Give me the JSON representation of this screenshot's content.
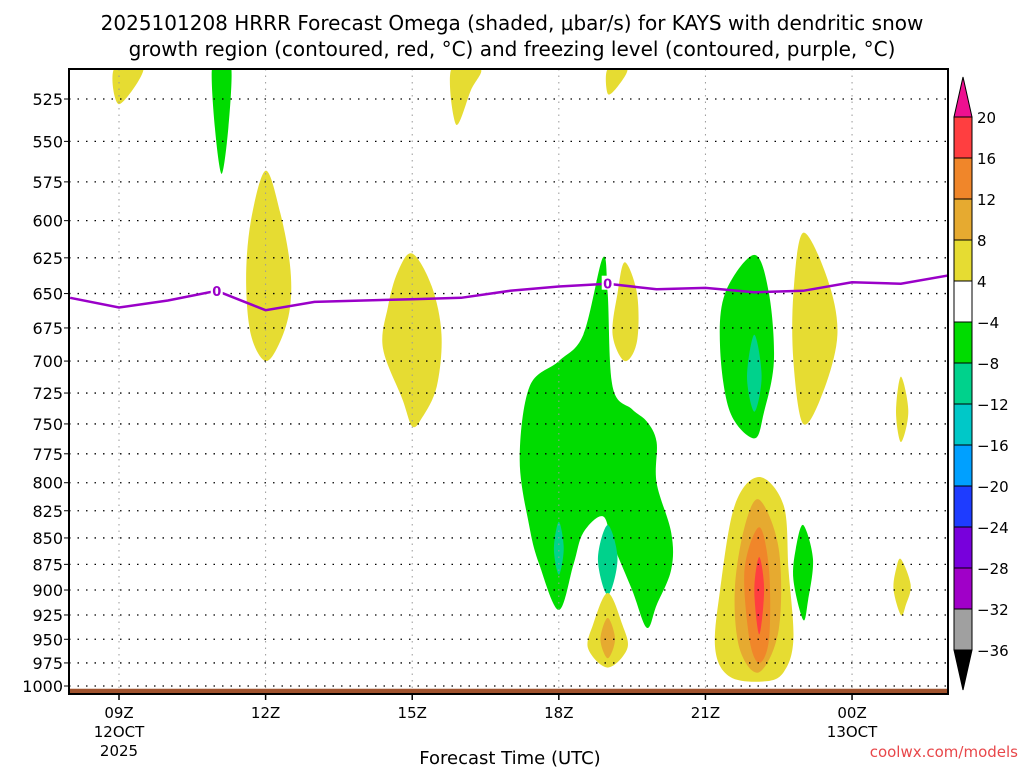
{
  "chart_data": {
    "type": "contour",
    "title_lines": [
      "2025101208 HRRR Forecast Omega (shaded, μbar/s) for KAYS with dendritic snow",
      "growth region (contoured, red, °C) and freezing level (contoured, purple, °C)"
    ],
    "xlabel": "Forecast Time (UTC)",
    "ylabel": "",
    "credit": "coolwx.com/models",
    "x_unit": "hours since 2025-10-12 09Z",
    "xlim": [
      -1.0,
      17.0
    ],
    "ylim_hPa": [
      510,
      1005
    ],
    "y_scale": "log-pressure, inverted",
    "grid": true,
    "y_ticks": [
      525,
      550,
      575,
      600,
      625,
      650,
      675,
      700,
      725,
      750,
      775,
      800,
      825,
      850,
      875,
      900,
      925,
      950,
      975,
      1000
    ],
    "x_ticks": [
      {
        "hour": 0,
        "lines": [
          "09Z",
          "12OCT",
          "2025"
        ]
      },
      {
        "hour": 3,
        "lines": [
          "12Z"
        ]
      },
      {
        "hour": 6,
        "lines": [
          "15Z"
        ]
      },
      {
        "hour": 9,
        "lines": [
          "18Z"
        ]
      },
      {
        "hour": 12,
        "lines": [
          "21Z"
        ]
      },
      {
        "hour": 15,
        "lines": [
          "00Z",
          "13OCT"
        ]
      }
    ],
    "colorbar": {
      "levels": [
        20,
        16,
        12,
        8,
        4,
        -4,
        -8,
        -12,
        -16,
        -20,
        -24,
        -28,
        -32,
        -36
      ],
      "colors": [
        "#ff3e40",
        "#f0862a",
        "#e6aa30",
        "#e6dc32",
        "#ffffff",
        "#00dc00",
        "#00d28c",
        "#00c8c8",
        "#00a0ff",
        "#1e3cff",
        "#7800dc",
        "#a000c8",
        "#a0a0a0"
      ],
      "over_color": "#ee1090",
      "under_color": "#000000"
    },
    "omega_regions": [
      {
        "name": "yellow-09z-top",
        "level": 4,
        "color": "#e6dc32",
        "points": [
          [
            -0.1,
            508
          ],
          [
            0.5,
            508
          ],
          [
            0.0,
            528
          ]
        ]
      },
      {
        "name": "green-11z-top",
        "level": -4,
        "color": "#00dc00",
        "points": [
          [
            1.9,
            508
          ],
          [
            2.3,
            508
          ],
          [
            2.1,
            570
          ]
        ]
      },
      {
        "name": "yellow-12z",
        "level": 4,
        "color": "#e6dc32",
        "points": [
          [
            3.0,
            568
          ],
          [
            3.3,
            595
          ],
          [
            3.5,
            630
          ],
          [
            3.5,
            660
          ],
          [
            3.3,
            685
          ],
          [
            3.0,
            700
          ],
          [
            2.7,
            680
          ],
          [
            2.6,
            640
          ],
          [
            2.7,
            600
          ]
        ]
      },
      {
        "name": "yellow-15z",
        "level": 4,
        "color": "#e6dc32",
        "points": [
          [
            6.0,
            622
          ],
          [
            6.4,
            645
          ],
          [
            6.6,
            680
          ],
          [
            6.5,
            720
          ],
          [
            6.2,
            745
          ],
          [
            6.0,
            752
          ],
          [
            5.8,
            730
          ],
          [
            5.4,
            690
          ],
          [
            5.5,
            660
          ],
          [
            5.7,
            635
          ]
        ]
      },
      {
        "name": "yellow-1630z-top",
        "level": 4,
        "color": "#e6dc32",
        "points": [
          [
            6.8,
            508
          ],
          [
            7.4,
            508
          ],
          [
            7.2,
            520
          ],
          [
            6.9,
            540
          ]
        ]
      },
      {
        "name": "yellow-1930z-top",
        "level": 4,
        "color": "#e6dc32",
        "points": [
          [
            10.0,
            508
          ],
          [
            10.4,
            508
          ],
          [
            10.2,
            518
          ],
          [
            10.0,
            522
          ]
        ]
      },
      {
        "name": "green-18z-big",
        "level": -4,
        "color": "#00dc00",
        "points": [
          [
            9.9,
            625
          ],
          [
            10.0,
            650
          ],
          [
            10.1,
            720
          ],
          [
            10.5,
            738
          ],
          [
            10.8,
            748
          ],
          [
            11.0,
            765
          ],
          [
            11.0,
            800
          ],
          [
            11.3,
            845
          ],
          [
            11.3,
            880
          ],
          [
            11.0,
            915
          ],
          [
            10.8,
            938
          ],
          [
            10.5,
            900
          ],
          [
            10.1,
            855
          ],
          [
            9.9,
            830
          ],
          [
            9.5,
            845
          ],
          [
            9.3,
            875
          ],
          [
            9.0,
            920
          ],
          [
            8.6,
            875
          ],
          [
            8.4,
            840
          ],
          [
            8.2,
            780
          ],
          [
            8.4,
            720
          ],
          [
            9.0,
            700
          ],
          [
            9.5,
            680
          ]
        ]
      },
      {
        "name": "teal-18z",
        "level": -8,
        "color": "#00d28c",
        "points": [
          [
            9.0,
            835
          ],
          [
            9.1,
            860
          ],
          [
            9.0,
            885
          ],
          [
            8.9,
            860
          ]
        ]
      },
      {
        "name": "teal-20z",
        "level": -8,
        "color": "#00d28c",
        "points": [
          [
            10.0,
            838
          ],
          [
            10.2,
            870
          ],
          [
            10.0,
            905
          ],
          [
            9.8,
            870
          ]
        ]
      },
      {
        "name": "yellow-20z-sliver",
        "level": 4,
        "color": "#e6dc32",
        "points": [
          [
            10.35,
            628
          ],
          [
            10.6,
            650
          ],
          [
            10.6,
            685
          ],
          [
            10.35,
            700
          ],
          [
            10.1,
            680
          ],
          [
            10.2,
            650
          ]
        ]
      },
      {
        "name": "yellow-19z-low",
        "level": 4,
        "color": "#e6dc32",
        "points": [
          [
            10.0,
            903
          ],
          [
            10.3,
            935
          ],
          [
            10.4,
            960
          ],
          [
            10.0,
            980
          ],
          [
            9.6,
            960
          ],
          [
            9.7,
            935
          ]
        ]
      },
      {
        "name": "gold-19z-low",
        "level": 8,
        "color": "#e6aa30",
        "points": [
          [
            10.0,
            928
          ],
          [
            10.15,
            950
          ],
          [
            10.0,
            970
          ],
          [
            9.85,
            950
          ]
        ]
      },
      {
        "name": "green-2130z",
        "level": -4,
        "color": "#00dc00",
        "points": [
          [
            13.0,
            623
          ],
          [
            13.3,
            650
          ],
          [
            13.4,
            700
          ],
          [
            13.2,
            740
          ],
          [
            13.0,
            762
          ],
          [
            12.5,
            740
          ],
          [
            12.3,
            690
          ],
          [
            12.4,
            650
          ]
        ]
      },
      {
        "name": "teal-2130z",
        "level": -8,
        "color": "#00d28c",
        "points": [
          [
            13.0,
            680
          ],
          [
            13.15,
            712
          ],
          [
            13.0,
            740
          ],
          [
            12.85,
            712
          ]
        ]
      },
      {
        "name": "yellow-2230z",
        "level": 4,
        "color": "#e6dc32",
        "points": [
          [
            14.0,
            608
          ],
          [
            14.5,
            640
          ],
          [
            14.7,
            680
          ],
          [
            14.4,
            725
          ],
          [
            14.0,
            750
          ],
          [
            13.8,
            700
          ],
          [
            13.8,
            650
          ]
        ]
      },
      {
        "name": "yellow-22z-core",
        "level": 4,
        "color": "#e6dc32",
        "points": [
          [
            13.1,
            795
          ],
          [
            13.6,
            820
          ],
          [
            13.7,
            880
          ],
          [
            13.8,
            950
          ],
          [
            13.6,
            985
          ],
          [
            13.2,
            995
          ],
          [
            12.5,
            990
          ],
          [
            12.2,
            960
          ],
          [
            12.3,
            900
          ],
          [
            12.6,
            820
          ]
        ]
      },
      {
        "name": "gold-22z-core",
        "level": 8,
        "color": "#e6aa30",
        "points": [
          [
            13.1,
            815
          ],
          [
            13.5,
            860
          ],
          [
            13.5,
            940
          ],
          [
            13.1,
            985
          ],
          [
            12.7,
            960
          ],
          [
            12.6,
            900
          ],
          [
            12.8,
            840
          ]
        ]
      },
      {
        "name": "orange-22z-core",
        "level": 12,
        "color": "#f0862a",
        "points": [
          [
            13.1,
            840
          ],
          [
            13.3,
            880
          ],
          [
            13.3,
            950
          ],
          [
            13.1,
            975
          ],
          [
            12.9,
            950
          ],
          [
            12.8,
            880
          ]
        ]
      },
      {
        "name": "red-22z-core",
        "level": 16,
        "color": "#ff3e40",
        "points": [
          [
            13.1,
            868
          ],
          [
            13.2,
            900
          ],
          [
            13.1,
            945
          ],
          [
            13.0,
            900
          ]
        ]
      },
      {
        "name": "green-2330z",
        "level": -4,
        "color": "#00dc00",
        "points": [
          [
            14.0,
            838
          ],
          [
            14.2,
            870
          ],
          [
            14.1,
            910
          ],
          [
            14.0,
            930
          ],
          [
            13.8,
            890
          ],
          [
            13.85,
            860
          ]
        ]
      },
      {
        "name": "yellow-01z-mid",
        "level": 4,
        "color": "#e6dc32",
        "points": [
          [
            16.0,
            712
          ],
          [
            16.15,
            740
          ],
          [
            16.0,
            765
          ],
          [
            15.9,
            740
          ]
        ]
      },
      {
        "name": "yellow-01z-low",
        "level": 4,
        "color": "#e6dc32",
        "points": [
          [
            16.0,
            870
          ],
          [
            16.2,
            895
          ],
          [
            16.1,
            915
          ],
          [
            16.0,
            925
          ],
          [
            15.85,
            900
          ],
          [
            15.9,
            880
          ]
        ]
      }
    ],
    "freezing_level": {
      "label": "0",
      "color": "#9a00c8",
      "points": [
        [
          -1.0,
          653
        ],
        [
          0.0,
          660
        ],
        [
          1.0,
          655
        ],
        [
          2.0,
          648
        ],
        [
          3.0,
          662
        ],
        [
          4.0,
          656
        ],
        [
          5.0,
          655
        ],
        [
          6.0,
          654
        ],
        [
          7.0,
          653
        ],
        [
          8.0,
          648
        ],
        [
          9.0,
          645
        ],
        [
          10.0,
          643
        ],
        [
          11.0,
          647
        ],
        [
          12.0,
          646
        ],
        [
          13.0,
          649
        ],
        [
          14.0,
          648
        ],
        [
          15.0,
          642
        ],
        [
          16.0,
          643
        ],
        [
          17.0,
          637
        ]
      ],
      "label_points": [
        [
          2.0,
          648
        ],
        [
          10.0,
          643
        ]
      ]
    },
    "surface": {
      "color": "#a0522d",
      "pressure_hPa": 1003
    }
  }
}
